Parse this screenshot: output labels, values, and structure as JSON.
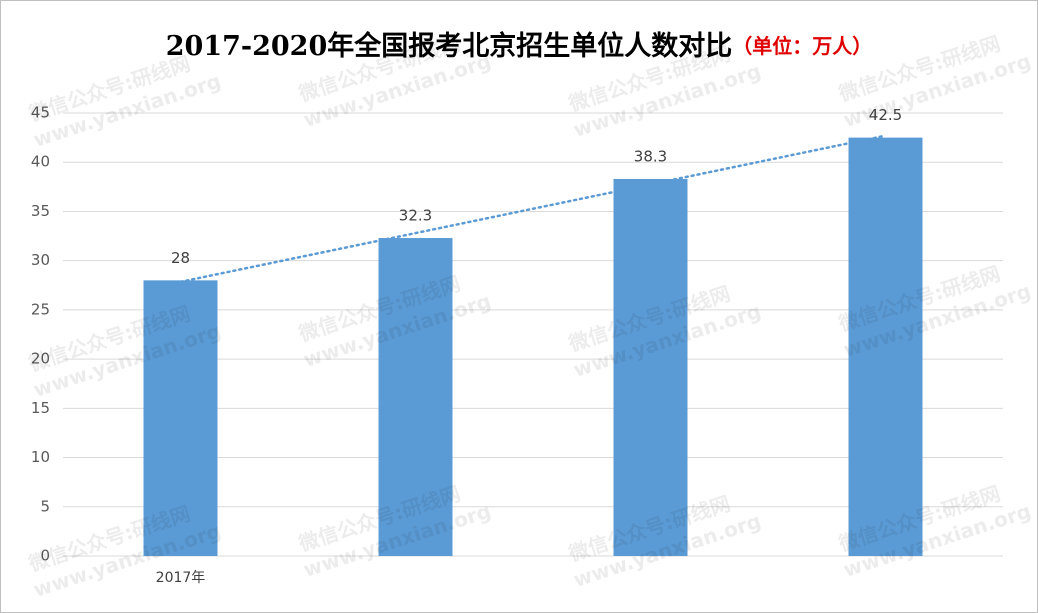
{
  "chart_data": {
    "type": "bar",
    "title": "2017-2020年全国报考北京招生单位人数对比",
    "subtitle": "（单位：万人）",
    "categories": [
      "2017年",
      null,
      null,
      null
    ],
    "values": [
      28,
      32.3,
      38.3,
      42.5
    ],
    "color": "#5b9bd5",
    "ylim": [
      0,
      45
    ],
    "yticks": [
      0,
      5,
      10,
      15,
      20,
      25,
      30,
      35,
      40,
      45
    ],
    "grid": true,
    "trendline": true,
    "data_labels": true,
    "watermark": [
      "微信公众号:研线网",
      "www.yanxian.org"
    ]
  }
}
